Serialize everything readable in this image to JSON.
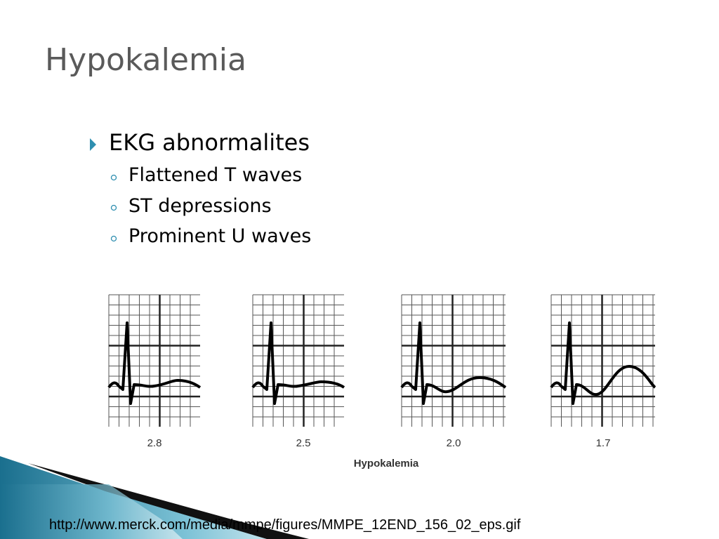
{
  "header": {
    "title": "Hypokalemia"
  },
  "bullets": {
    "main": "EKG abnormalites",
    "sub": [
      "Flattened T waves",
      "ST depressions",
      "Prominent U waves"
    ]
  },
  "figure": {
    "labels": [
      "2.8",
      "2.5",
      "2.0",
      "1.7"
    ],
    "caption": "Hypokalemia"
  },
  "footer": {
    "source": "http://www.merck.com/media/mmpe/figures/MMPE_12END_156_02_eps.gif"
  }
}
